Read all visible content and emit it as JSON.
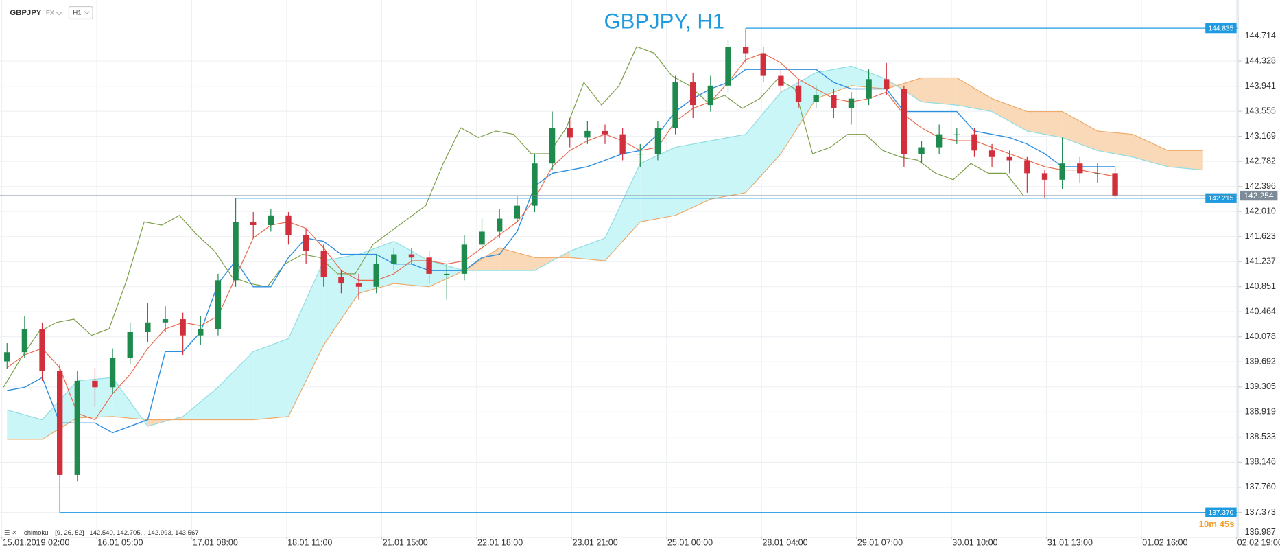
{
  "chart_data": {
    "type": "candlestick",
    "title": "GBPJPY, H1",
    "symbol": "GBPJPY",
    "market": "FX",
    "timeframe": "H1",
    "xlim": [
      -7,
      345
    ],
    "ylim": [
      136.99,
      145.27
    ],
    "grid": true,
    "xticks": [
      {
        "value": -6.5,
        "label": "15.01.2019 02:00"
      },
      {
        "value": 20.5,
        "label": "16.01 05:00"
      },
      {
        "value": 47.5,
        "label": "17.01 08:00"
      },
      {
        "value": 74.5,
        "label": "18.01 11:00"
      },
      {
        "value": 101.5,
        "label": "21.01 15:00"
      },
      {
        "value": 128.5,
        "label": "22.01 18:00"
      },
      {
        "value": 155.5,
        "label": "23.01 21:00"
      },
      {
        "value": 182.5,
        "label": "25.01 00:00"
      },
      {
        "value": 209.5,
        "label": "28.01 04:00"
      },
      {
        "value": 236.5,
        "label": "29.01 07:00"
      },
      {
        "value": 263.5,
        "label": "30.01 10:00"
      },
      {
        "value": 290.5,
        "label": "31.01 13:00"
      },
      {
        "value": 317.5,
        "label": "01.02 16:00"
      },
      {
        "value": 344.5,
        "label": "02.02 19:00"
      }
    ],
    "yticks": [
      144.714,
      144.328,
      143.941,
      143.555,
      143.169,
      142.782,
      142.396,
      {
        "value": 142.01,
        "label": "142.010"
      },
      141.623,
      141.237,
      140.851,
      140.464,
      140.078,
      139.692,
      139.305,
      138.919,
      138.533,
      138.146,
      {
        "value": 137.76,
        "label": "137.760"
      },
      137.373,
      136.987
    ],
    "up_color": "#1e8a4e",
    "down_color": "#d12f3c",
    "x": [
      -5,
      0,
      5,
      10,
      15,
      20,
      25,
      30,
      35,
      40,
      45,
      50,
      55,
      60,
      65,
      70,
      75,
      80,
      85,
      90,
      95,
      100,
      105,
      110,
      115,
      120,
      125,
      130,
      135,
      140,
      145,
      150,
      155,
      160,
      165,
      170,
      175,
      180,
      185,
      190,
      195,
      200,
      205,
      210,
      215,
      220,
      225,
      230,
      235,
      240,
      245,
      250,
      255,
      260,
      265,
      270,
      275,
      280,
      285,
      290,
      295,
      300,
      305,
      310
    ],
    "open": [
      139.7,
      139.84,
      140.2,
      139.55,
      137.95,
      139.4,
      139.3,
      139.75,
      140.15,
      140.3,
      140.35,
      140.1,
      140.2,
      140.95,
      141.85,
      141.8,
      141.95,
      141.65,
      141.4,
      141.0,
      140.9,
      140.85,
      141.2,
      141.35,
      141.3,
      141.05,
      141.05,
      141.5,
      141.7,
      141.9,
      142.1,
      142.75,
      143.3,
      143.15,
      143.25,
      143.2,
      142.9,
      142.9,
      143.3,
      144.0,
      143.65,
      143.95,
      144.55,
      144.45,
      144.1,
      143.95,
      143.7,
      143.8,
      143.6,
      143.75,
      144.05,
      143.9,
      142.9,
      143.0,
      143.2,
      143.2,
      142.95,
      142.85,
      142.8,
      142.6,
      142.5,
      142.75,
      142.6,
      142.6
    ],
    "high": [
      139.98,
      140.4,
      140.3,
      139.65,
      139.55,
      139.6,
      139.9,
      140.3,
      140.6,
      140.55,
      140.45,
      140.4,
      141.05,
      142.215,
      142.0,
      142.05,
      142.0,
      141.75,
      141.5,
      141.1,
      141.05,
      141.35,
      141.45,
      141.45,
      141.4,
      141.2,
      141.65,
      141.9,
      142.05,
      142.25,
      142.9,
      143.55,
      143.45,
      143.4,
      143.35,
      143.3,
      143.05,
      143.4,
      144.1,
      144.15,
      144.1,
      144.65,
      144.835,
      144.55,
      144.2,
      144.05,
      143.95,
      143.9,
      143.85,
      144.2,
      144.3,
      143.95,
      143.1,
      143.35,
      143.3,
      143.3,
      143.05,
      142.95,
      142.85,
      142.65,
      143.15,
      142.85,
      142.75,
      142.7
    ],
    "low": [
      139.58,
      139.75,
      139.4,
      137.37,
      137.85,
      139.0,
      139.2,
      139.65,
      140.0,
      140.15,
      139.8,
      139.95,
      140.1,
      140.85,
      141.6,
      141.7,
      141.5,
      141.2,
      140.85,
      140.75,
      140.65,
      140.75,
      141.1,
      141.2,
      140.9,
      140.65,
      140.95,
      141.4,
      141.6,
      141.85,
      142.0,
      142.65,
      143.0,
      143.05,
      143.05,
      142.8,
      142.7,
      142.8,
      143.2,
      143.45,
      143.55,
      143.85,
      144.3,
      144.0,
      143.85,
      143.6,
      143.6,
      143.45,
      143.35,
      143.65,
      143.8,
      142.7,
      142.75,
      142.9,
      143.05,
      142.85,
      142.7,
      142.6,
      142.3,
      142.22,
      142.35,
      142.45,
      142.45,
      142.22
    ],
    "close": [
      139.84,
      140.2,
      139.55,
      137.95,
      139.4,
      139.3,
      139.75,
      140.15,
      140.3,
      140.35,
      140.1,
      140.2,
      140.95,
      141.85,
      141.8,
      141.95,
      141.65,
      141.4,
      141.0,
      140.9,
      140.85,
      141.2,
      141.35,
      141.3,
      141.05,
      141.05,
      141.5,
      141.7,
      141.9,
      142.1,
      142.75,
      143.3,
      143.15,
      143.25,
      143.2,
      142.9,
      142.9,
      143.3,
      144.0,
      143.65,
      143.95,
      144.55,
      144.45,
      144.1,
      143.95,
      143.7,
      143.8,
      143.6,
      143.75,
      144.05,
      143.9,
      142.9,
      143.0,
      143.2,
      143.2,
      142.95,
      142.85,
      142.8,
      142.6,
      142.5,
      142.75,
      142.6,
      142.6,
      142.254
    ],
    "conversion": {
      "color": "#e8694c",
      "values": [
        139.6,
        139.8,
        139.9,
        139.6,
        138.9,
        138.8,
        139.2,
        139.5,
        139.9,
        140.2,
        140.3,
        140.25,
        140.4,
        141.0,
        141.6,
        141.8,
        141.85,
        141.75,
        141.45,
        141.1,
        140.95,
        140.95,
        141.05,
        141.25,
        141.25,
        141.2,
        141.25,
        141.45,
        141.65,
        141.85,
        142.2,
        142.7,
        142.95,
        143.1,
        143.2,
        143.1,
        142.95,
        143.0,
        143.4,
        143.6,
        143.7,
        144.0,
        144.35,
        144.45,
        144.3,
        144.05,
        143.9,
        143.75,
        143.7,
        143.75,
        143.85,
        143.5,
        143.3,
        143.15,
        143.1,
        143.1,
        143.0,
        142.9,
        142.8,
        142.7,
        142.65,
        142.65,
        142.6,
        142.55
      ]
    },
    "base": {
      "color": "#2e8fe0",
      "values": [
        139.25,
        139.3,
        139.45,
        138.75,
        138.75,
        138.75,
        138.6,
        138.7,
        138.8,
        139.85,
        139.85,
        140.15,
        140.9,
        141.25,
        140.85,
        140.85,
        141.3,
        141.6,
        141.55,
        141.35,
        141.35,
        141.35,
        141.2,
        141.2,
        141.1,
        141.1,
        141.1,
        141.3,
        141.35,
        141.7,
        142.4,
        142.6,
        142.65,
        142.7,
        142.8,
        142.9,
        142.95,
        143.2,
        143.55,
        143.75,
        143.9,
        144.0,
        144.2,
        144.2,
        144.2,
        144.2,
        144.2,
        144.0,
        143.9,
        143.9,
        143.9,
        143.55,
        143.55,
        143.55,
        143.55,
        143.25,
        143.2,
        143.15,
        143.05,
        142.9,
        142.7,
        142.7,
        142.7,
        142.7
      ]
    },
    "lagging": {
      "color": "#7c9f48",
      "x": [
        -6,
        -1,
        4,
        9,
        14,
        19,
        24,
        29,
        34,
        39,
        44,
        49,
        54,
        59,
        64,
        69,
        74,
        79,
        84,
        89,
        94,
        99,
        104,
        109,
        114,
        119,
        124,
        129,
        134,
        139,
        144,
        149,
        154,
        159,
        164,
        169,
        174,
        179,
        184,
        189,
        194,
        199,
        204,
        209,
        214,
        219,
        224,
        229,
        234,
        239,
        244,
        249,
        254,
        259,
        264,
        269,
        274,
        279,
        284
      ],
      "values": [
        139.3,
        139.75,
        140.15,
        140.3,
        140.35,
        140.1,
        140.2,
        140.95,
        141.85,
        141.8,
        141.95,
        141.65,
        141.4,
        141.0,
        140.9,
        140.85,
        141.2,
        141.35,
        141.3,
        141.05,
        141.05,
        141.5,
        141.7,
        141.9,
        142.1,
        142.75,
        143.3,
        143.15,
        143.25,
        143.2,
        142.9,
        142.9,
        143.3,
        144.0,
        143.65,
        143.95,
        144.55,
        144.45,
        144.1,
        143.95,
        143.7,
        143.8,
        143.6,
        143.75,
        144.05,
        143.9,
        142.9,
        143.0,
        143.2,
        143.2,
        142.95,
        142.85,
        142.8,
        142.6,
        142.5,
        142.75,
        142.6,
        142.6,
        142.254
      ]
    },
    "cloud": {
      "x": [
        -5,
        5,
        15,
        25,
        35,
        45,
        55,
        65,
        75,
        85,
        95,
        105,
        115,
        125,
        135,
        145,
        155,
        165,
        175,
        185,
        195,
        205,
        215,
        225,
        235,
        245,
        255,
        265,
        275,
        285,
        295,
        305,
        315,
        325,
        335
      ],
      "span_a": {
        "color": "#8fdde3",
        "values": [
          138.95,
          138.8,
          139.4,
          139.45,
          138.7,
          138.85,
          139.3,
          139.85,
          140.05,
          141.25,
          141.35,
          141.55,
          141.25,
          141.1,
          141.1,
          141.1,
          141.4,
          141.6,
          142.75,
          143.0,
          143.1,
          143.2,
          143.85,
          144.15,
          144.25,
          144.05,
          143.7,
          143.65,
          143.55,
          143.25,
          143.15,
          142.95,
          142.85,
          142.7,
          142.65
        ]
      },
      "span_b": {
        "color": "#efa865",
        "values": [
          138.5,
          138.5,
          138.83,
          138.85,
          138.8,
          138.8,
          138.8,
          138.8,
          138.85,
          139.95,
          140.75,
          140.9,
          140.85,
          141.1,
          141.45,
          141.3,
          141.3,
          141.25,
          141.85,
          141.95,
          142.2,
          142.3,
          142.9,
          143.75,
          143.95,
          143.9,
          144.07,
          144.07,
          143.75,
          143.55,
          143.55,
          143.25,
          143.2,
          142.95,
          142.95
        ]
      },
      "up_fill": "#cbf6f8",
      "down_fill": "#f9d9b8"
    },
    "levels": [
      {
        "value": 144.835,
        "start": 205,
        "color": "#1e9be0"
      },
      {
        "value": 142.215,
        "start": 60,
        "color": "#1e9be0"
      },
      {
        "value": {
          "value": 137.37,
          "label": "137.370"
        },
        "start": 10,
        "color": "#1e9be0"
      }
    ],
    "last_price": {
      "value": 142.254,
      "color": "#7d8b98"
    },
    "legend": {
      "name": "Ichimoku",
      "params": "[9, 26, 52]",
      "values": "142.540, 142.705, , 142.993, 143.567"
    },
    "timer": "10m 45s"
  }
}
